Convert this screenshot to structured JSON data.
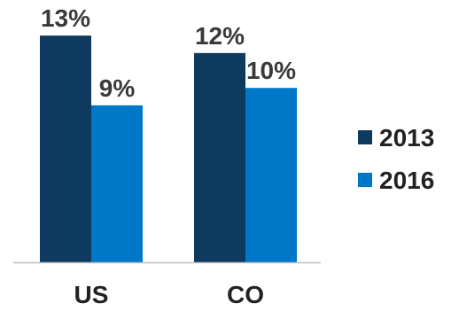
{
  "chart_data": {
    "type": "bar",
    "categories": [
      "US",
      "CO"
    ],
    "series": [
      {
        "name": "2013",
        "values": [
          13,
          12
        ],
        "labels": [
          "13%",
          "12%"
        ],
        "color": "#0f3a5f"
      },
      {
        "name": "2016",
        "values": [
          9,
          10
        ],
        "labels": [
          "9%",
          "10%"
        ],
        "color": "#0078c8"
      }
    ],
    "ylim": [
      0,
      14
    ],
    "grid": false,
    "legend_position": "right",
    "axis_color": "#bfbfbf"
  }
}
